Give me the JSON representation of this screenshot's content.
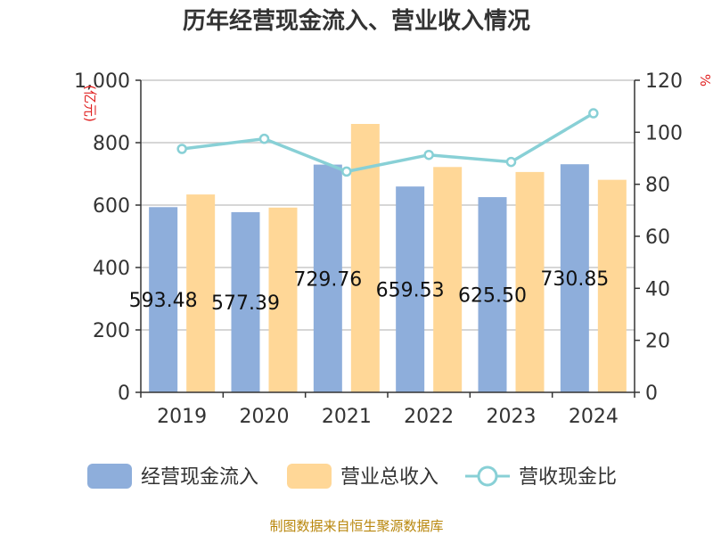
{
  "chart_data": {
    "type": "bar",
    "title": "历年经营现金流入、营业收入情况",
    "categories": [
      "2019",
      "2020",
      "2021",
      "2022",
      "2023",
      "2024"
    ],
    "series": [
      {
        "name": "经营现金流入",
        "type": "bar",
        "axis": "left",
        "color": "#8eaedb",
        "values": [
          593.48,
          577.39,
          729.76,
          659.53,
          625.5,
          730.85
        ]
      },
      {
        "name": "营业总收入",
        "type": "bar",
        "axis": "left",
        "color": "#ffd797",
        "values": [
          634,
          592,
          860,
          722,
          706,
          681
        ]
      },
      {
        "name": "营收现金比",
        "type": "line",
        "axis": "right",
        "color": "#88d0d6",
        "values": [
          93.6,
          97.5,
          84.9,
          91.3,
          88.6,
          107.3
        ]
      }
    ],
    "data_labels": [
      "593.48",
      "577.39",
      "729.76",
      "659.53",
      "625.50",
      "730.85"
    ],
    "y_left": {
      "label": "(亿元)",
      "min": 0,
      "max": 1000,
      "ticks": [
        "0",
        "200",
        "400",
        "600",
        "800",
        "1,000"
      ]
    },
    "y_right": {
      "label": "%",
      "min": 0,
      "max": 120,
      "ticks": [
        "0",
        "20",
        "40",
        "60",
        "80",
        "100",
        "120"
      ]
    },
    "grid": true,
    "legend_position": "bottom"
  },
  "source_text": "制图数据来自恒生聚源数据库"
}
